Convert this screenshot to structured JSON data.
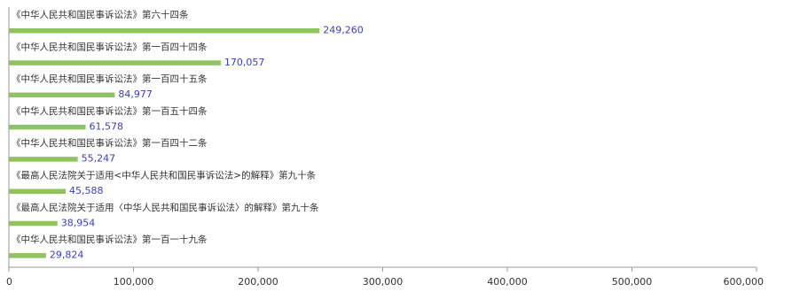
{
  "chart_data": {
    "type": "bar",
    "orientation": "horizontal",
    "categories": [
      "《中华人民共和国民事诉讼法》第六十四条",
      "《中华人民共和国民事诉讼法》第一百四十四条",
      "《中华人民共和国民事诉讼法》第一百四十五条",
      "《中华人民共和国民事诉讼法》第一百五十四条",
      "《中华人民共和国民事诉讼法》第一百四十二条",
      "《最高人民法院关于适用<中华人民共和国民事诉讼法>的解释》第九十条",
      "《最高人民法院关于适用〈中华人民共和国民事诉讼法〉的解释》第九十条",
      "《中华人民共和国民事诉讼法》第一百一十九条"
    ],
    "values": [
      249260,
      170057,
      84977,
      61578,
      55247,
      45588,
      38954,
      29824
    ],
    "value_labels": [
      "249,260",
      "170,057",
      "84,977",
      "61,578",
      "55,247",
      "45,588",
      "38,954",
      "29,824"
    ],
    "xlim": [
      0,
      600000
    ],
    "x_ticks": [
      0,
      100000,
      200000,
      300000,
      400000,
      500000,
      600000
    ],
    "x_tick_labels": [
      "0",
      "100,000",
      "200,000",
      "300,000",
      "400,000",
      "500,000",
      "600,000"
    ],
    "grid": false,
    "legend": "none",
    "bar_color": "#8fc35f",
    "value_label_color": "#3b3fb5",
    "axis_color": "#999999"
  }
}
